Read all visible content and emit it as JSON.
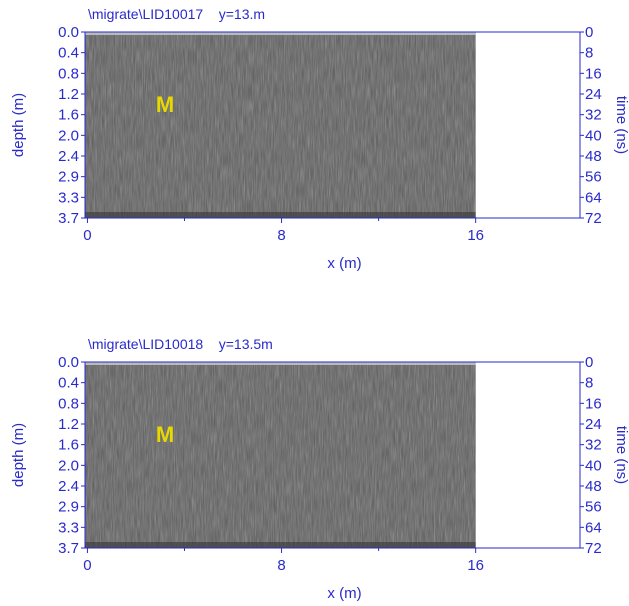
{
  "chart_data": [
    {
      "type": "heatmap",
      "title": "\\migrate\\LID10017    y=13.m",
      "xlabel": "x (m)",
      "ylabel": "depth (m)",
      "y2label": "time (ns)",
      "x_ticks": [
        "0",
        "8",
        "16"
      ],
      "xlim": [
        -0.1,
        20.3
      ],
      "data_xlim": [
        0,
        16
      ],
      "depth_ticks": [
        "0.0",
        "0.4",
        "0.8",
        "1.2",
        "1.6",
        "2.0",
        "2.4",
        "2.9",
        "3.3",
        "3.7"
      ],
      "time_ticks": [
        "0",
        "8",
        "16",
        "24",
        "32",
        "40",
        "48",
        "56",
        "64",
        "72"
      ],
      "annotation": "M",
      "annotation_color": "#e6d800",
      "axis_color": "#2a2acc"
    },
    {
      "type": "heatmap",
      "title": "\\migrate\\LID10018    y=13.5m",
      "xlabel": "x (m)",
      "ylabel": "depth (m)",
      "y2label": "time (ns)",
      "x_ticks": [
        "0",
        "8",
        "16"
      ],
      "xlim": [
        -0.1,
        20.3
      ],
      "data_xlim": [
        0,
        16
      ],
      "depth_ticks": [
        "0.0",
        "0.4",
        "0.8",
        "1.2",
        "1.6",
        "2.0",
        "2.4",
        "2.9",
        "3.3",
        "3.7"
      ],
      "time_ticks": [
        "0",
        "8",
        "16",
        "24",
        "32",
        "40",
        "48",
        "56",
        "64",
        "72"
      ],
      "annotation": "M",
      "annotation_color": "#e6d800",
      "axis_color": "#2a2acc"
    }
  ]
}
